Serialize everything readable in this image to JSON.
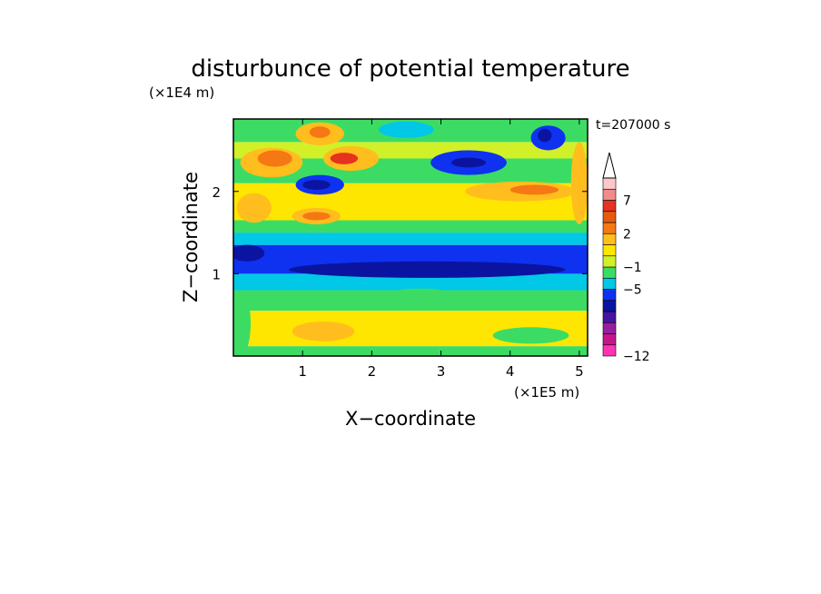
{
  "chart_data": {
    "type": "heatmap",
    "title": "disturbunce of potential temperature",
    "time_label": "t=207000 s",
    "xlabel": "X−coordinate",
    "ylabel": "Z−coordinate",
    "x_scale_label": "(×1E5 m)",
    "y_scale_label": "(×1E4 m)",
    "xlim": [
      0,
      5.12
    ],
    "ylim": [
      0,
      2.88
    ],
    "x_ticks": [
      "1",
      "2",
      "3",
      "4",
      "5"
    ],
    "y_ticks": [
      "1",
      "2"
    ],
    "colorbar": {
      "levels": [
        {
          "color": "#ff33b4"
        },
        {
          "color": "#c8148c"
        },
        {
          "color": "#961ea0"
        },
        {
          "color": "#4614a0"
        },
        {
          "color": "#0a14a0"
        },
        {
          "color": "#0f32f0"
        },
        {
          "color": "#00c8e6"
        },
        {
          "color": "#3cdc64"
        },
        {
          "color": "#d2f028"
        },
        {
          "color": "#ffe600"
        },
        {
          "color": "#ffbe1e"
        },
        {
          "color": "#f57814"
        },
        {
          "color": "#e65a0f"
        },
        {
          "color": "#e6321e"
        },
        {
          "color": "#f08c8c"
        },
        {
          "color": "#ffc8c8"
        }
      ],
      "tick_labels": [
        "−12",
        "−5",
        "−1",
        "2",
        "7"
      ],
      "extend": "max"
    },
    "field_bands": [
      {
        "z_from": 0.0,
        "z_to": 0.12,
        "color": "#3cdc64"
      },
      {
        "z_from": 0.12,
        "z_to": 0.55,
        "color": "#ffe600"
      },
      {
        "z_from": 0.55,
        "z_to": 0.8,
        "color": "#3cdc64"
      },
      {
        "z_from": 0.8,
        "z_to": 1.0,
        "color": "#00c8e6"
      },
      {
        "z_from": 1.0,
        "z_to": 1.35,
        "color": "#0f32f0"
      },
      {
        "z_from": 1.35,
        "z_to": 1.5,
        "color": "#00c8e6"
      },
      {
        "z_from": 1.5,
        "z_to": 1.65,
        "color": "#3cdc64"
      },
      {
        "z_from": 1.65,
        "z_to": 2.1,
        "color": "#ffe600"
      },
      {
        "z_from": 2.1,
        "z_to": 2.4,
        "color": "#3cdc64"
      },
      {
        "z_from": 2.4,
        "z_to": 2.6,
        "color": "#d2f028"
      },
      {
        "z_from": 2.6,
        "z_to": 2.88,
        "color": "#3cdc64"
      }
    ],
    "field_features": [
      {
        "x": 0.55,
        "z": 2.35,
        "rx": 0.45,
        "rz": 0.18,
        "color": "#ffbe1e"
      },
      {
        "x": 0.6,
        "z": 2.4,
        "rx": 0.25,
        "rz": 0.1,
        "color": "#f57814"
      },
      {
        "x": 1.25,
        "z": 2.7,
        "rx": 0.35,
        "rz": 0.14,
        "color": "#ffbe1e"
      },
      {
        "x": 1.25,
        "z": 2.72,
        "rx": 0.15,
        "rz": 0.07,
        "color": "#f57814"
      },
      {
        "x": 1.7,
        "z": 2.4,
        "rx": 0.4,
        "rz": 0.15,
        "color": "#ffbe1e"
      },
      {
        "x": 1.6,
        "z": 2.4,
        "rx": 0.2,
        "rz": 0.07,
        "color": "#e6321e"
      },
      {
        "x": 1.25,
        "z": 2.08,
        "rx": 0.35,
        "rz": 0.12,
        "color": "#0f32f0"
      },
      {
        "x": 1.2,
        "z": 2.08,
        "rx": 0.2,
        "rz": 0.06,
        "color": "#0a14a0"
      },
      {
        "x": 1.2,
        "z": 1.7,
        "rx": 0.35,
        "rz": 0.1,
        "color": "#ffbe1e"
      },
      {
        "x": 1.2,
        "z": 1.7,
        "rx": 0.2,
        "rz": 0.05,
        "color": "#f57814"
      },
      {
        "x": 0.3,
        "z": 1.8,
        "rx": 0.25,
        "rz": 0.18,
        "color": "#ffbe1e"
      },
      {
        "x": 3.4,
        "z": 2.35,
        "rx": 0.55,
        "rz": 0.15,
        "color": "#0f32f0"
      },
      {
        "x": 3.4,
        "z": 2.35,
        "rx": 0.25,
        "rz": 0.06,
        "color": "#0a14a0"
      },
      {
        "x": 4.15,
        "z": 2.0,
        "rx": 0.8,
        "rz": 0.12,
        "color": "#ffbe1e"
      },
      {
        "x": 4.35,
        "z": 2.02,
        "rx": 0.35,
        "rz": 0.06,
        "color": "#f57814"
      },
      {
        "x": 4.55,
        "z": 2.65,
        "rx": 0.25,
        "rz": 0.15,
        "color": "#0f32f0"
      },
      {
        "x": 4.5,
        "z": 2.68,
        "rx": 0.1,
        "rz": 0.08,
        "color": "#0a14a0"
      },
      {
        "x": 2.5,
        "z": 2.75,
        "rx": 0.4,
        "rz": 0.1,
        "color": "#00c8e6"
      },
      {
        "x": 5.0,
        "z": 2.1,
        "rx": 0.12,
        "rz": 0.5,
        "color": "#ffbe1e"
      },
      {
        "x": 2.8,
        "z": 1.05,
        "rx": 2.0,
        "rz": 0.1,
        "color": "#0a14a0"
      },
      {
        "x": 0.2,
        "z": 1.25,
        "rx": 0.25,
        "rz": 0.1,
        "color": "#0a14a0"
      },
      {
        "x": 0.1,
        "z": 0.4,
        "rx": 0.15,
        "rz": 0.4,
        "color": "#3cdc64"
      },
      {
        "x": 2.7,
        "z": 0.7,
        "rx": 0.6,
        "rz": 0.12,
        "color": "#3cdc64"
      },
      {
        "x": 1.3,
        "z": 0.3,
        "rx": 0.45,
        "rz": 0.12,
        "color": "#ffbe1e"
      },
      {
        "x": 4.3,
        "z": 0.25,
        "rx": 0.55,
        "rz": 0.1,
        "color": "#3cdc64"
      }
    ]
  }
}
